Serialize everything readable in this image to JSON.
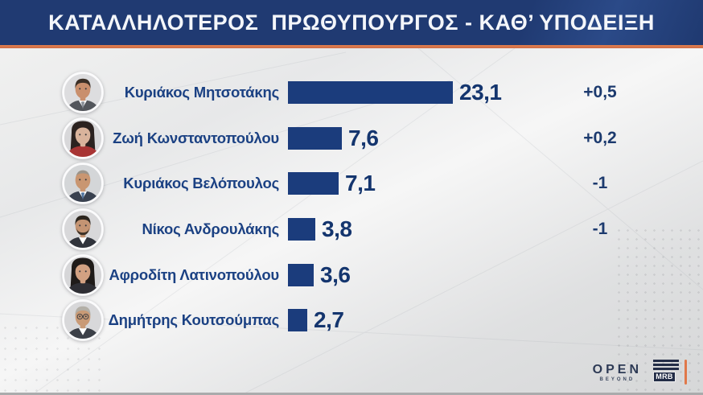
{
  "header": {
    "title": "ΚΑΤΑΛΛΗΛΟΤΕΡΟΣ  ΠΡΩΘΥΠΟΥΡΓΟΣ - ΚΑΘ’ ΥΠΟΔΕΙΞΗ"
  },
  "rows": [
    {
      "name": "Κυριάκος Μητσοτάκης",
      "value": 23.1,
      "value_label": "23,1",
      "change": "+0,5",
      "avatar": {
        "bg": "#dddddf",
        "hair": "#3b2f26",
        "skin": "#c98f6d",
        "suit": "#53565c",
        "shirt": "#ffffff",
        "tie": "#8a8f98",
        "style": "short"
      }
    },
    {
      "name": "Ζωή Κωνσταντοπούλου",
      "value": 7.6,
      "value_label": "7,6",
      "change": "+0,2",
      "avatar": {
        "bg": "#d8d8da",
        "hair": "#2b2220",
        "skin": "#d9b39c",
        "suit": "#a83434",
        "style": "long"
      }
    },
    {
      "name": "Κυριάκος Βελόπουλος",
      "value": 7.1,
      "value_label": "7,1",
      "change": "-1",
      "avatar": {
        "bg": "#d4d6d8",
        "hair": "#9b948a",
        "skin": "#c99671",
        "suit": "#39414f",
        "shirt": "#ffffff",
        "tie": "#51749f",
        "style": "receding"
      }
    },
    {
      "name": "Νίκος Ανδρουλάκης",
      "value": 3.8,
      "value_label": "3,8",
      "change": "-1",
      "avatar": {
        "bg": "#d8d8da",
        "hair": "#2d261f",
        "skin": "#c49473",
        "suit": "#31343c",
        "shirt": "#ffffff",
        "beard": true,
        "style": "short"
      }
    },
    {
      "name": "Αφροδίτη Λατινοπούλου",
      "value": 3.6,
      "value_label": "3,6",
      "change": "",
      "avatar": {
        "bg": "#d6d6d8",
        "hair": "#1f1b19",
        "skin": "#d2a182",
        "suit": "#2e2e34",
        "style": "long"
      }
    },
    {
      "name": "Δημήτρης Κουτσούμπας",
      "value": 2.7,
      "value_label": "2,7",
      "change": "",
      "avatar": {
        "bg": "#d8d8da",
        "hair": "#b3afa7",
        "skin": "#c99a76",
        "suit": "#3c4048",
        "shirt": "#ffffff",
        "glasses": true,
        "style": "short"
      }
    }
  ],
  "footer": {
    "open_word": "OPEN",
    "open_sub": "BEYOND",
    "mrb_label": "MRB"
  },
  "colors": {
    "header_bg": "#203a72",
    "accent_orange": "#d4714b",
    "bar": "#1b3c7c",
    "name_text": "#1b4183",
    "value_text": "#14356e",
    "title_text": "#f4f6fa"
  },
  "chart_data": {
    "type": "bar",
    "orientation": "horizontal",
    "title": "ΚΑΤΑΛΛΗΛΟΤΕΡΟΣ ΠΡΩΘΥΠΟΥΡΓΟΣ - ΚΑΘ’ ΥΠΟΔΕΙΞΗ",
    "categories": [
      "Κυριάκος Μητσοτάκης",
      "Ζωή Κωνσταντοπούλου",
      "Κυριάκος Βελόπουλος",
      "Νίκος Ανδρουλάκης",
      "Αφροδίτη Λατινοπούλου",
      "Δημήτρης Κουτσούμπας"
    ],
    "values": [
      23.1,
      7.6,
      7.1,
      3.8,
      3.6,
      2.7
    ],
    "value_labels": [
      "23,1",
      "7,6",
      "7,1",
      "3,8",
      "3,6",
      "2,7"
    ],
    "change_labels": [
      "+0,5",
      "+0,2",
      "-1",
      "-1",
      "",
      ""
    ],
    "bar_color": "#1b3c7c",
    "xlim": [
      0,
      25
    ],
    "grid": false,
    "legend": false
  }
}
